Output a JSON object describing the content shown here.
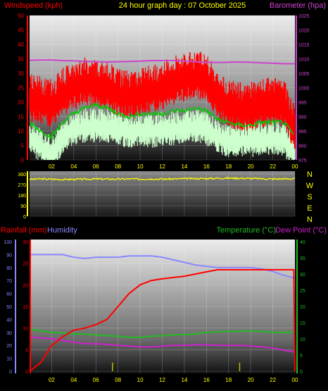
{
  "header": {
    "left": "Windspeed (kph)",
    "center": "24 hour graph day : 07 October 2025",
    "right": "Barometer (hpa)"
  },
  "bottom_header": {
    "rainfall": "Rainfall (mm)",
    "humidity": "Humidity",
    "temperature": "Temperature (°C)",
    "dewpoint": "Dew Point (°C)"
  },
  "compass": [
    "N",
    "W",
    "S",
    "E",
    "N"
  ],
  "colors": {
    "wind_max": "#ff0000",
    "wind_avg": "#00cc00",
    "wind_min": "#ccffcc",
    "barometer": "#cc44cc",
    "direction": "#ffff00",
    "rain": "#ff0000",
    "humidity": "#8888ff",
    "temperature": "#22bb22",
    "dewpoint": "#cc22cc",
    "rain_rate": "#bbbb00"
  },
  "x_ticks": [
    "02",
    "04",
    "06",
    "08",
    "10",
    "12",
    "14",
    "16",
    "18",
    "20",
    "22",
    "00"
  ],
  "chart_data": [
    {
      "type": "line",
      "title": "24 hour graph day : 07 October 2025",
      "ylabel": "Windspeed (kph)",
      "y2label": "Barometer (hpa)",
      "ylim": [
        0,
        50
      ],
      "y2lim": [
        975,
        1025
      ],
      "y_ticks": [
        0,
        5,
        10,
        15,
        20,
        25,
        30,
        35,
        40,
        45,
        50
      ],
      "y2_ticks": [
        975,
        980,
        985,
        990,
        995,
        1000,
        1005,
        1010,
        1015,
        1020,
        1025
      ],
      "x": [
        0,
        1,
        2,
        3,
        4,
        5,
        6,
        7,
        8,
        9,
        10,
        11,
        12,
        13,
        14,
        15,
        16,
        17,
        18,
        19,
        20,
        21,
        22,
        23,
        24
      ],
      "series": [
        {
          "name": "Gust",
          "axis": "left",
          "values": [
            22,
            21,
            20,
            24,
            26,
            28,
            27,
            26,
            24,
            23,
            24,
            25,
            26,
            28,
            29,
            30,
            29,
            23,
            20,
            19,
            19,
            20,
            21,
            20,
            12
          ]
        },
        {
          "name": "Average",
          "axis": "left",
          "values": [
            13,
            10,
            8,
            13,
            16,
            18,
            19,
            18,
            16,
            15,
            16,
            16,
            16,
            17,
            17,
            18,
            17,
            14,
            13,
            12,
            12,
            13,
            13,
            13,
            8
          ]
        },
        {
          "name": "Lull",
          "axis": "left",
          "values": [
            8,
            5,
            2,
            8,
            11,
            12,
            12,
            12,
            11,
            10,
            11,
            10,
            11,
            11,
            12,
            12,
            11,
            8,
            7,
            7,
            7,
            7,
            8,
            7,
            3
          ]
        },
        {
          "name": "Barometer",
          "axis": "right",
          "values": [
            1009.5,
            1009.6,
            1009.6,
            1009.4,
            1009.3,
            1009.1,
            1009.0,
            1008.9,
            1009.0,
            1009.1,
            1009.2,
            1009.4,
            1009.4,
            1009.4,
            1009.2,
            1009.0,
            1008.8,
            1008.7,
            1008.8,
            1008.9,
            1008.8,
            1008.6,
            1008.5,
            1008.3,
            1008.3
          ]
        }
      ]
    },
    {
      "type": "line",
      "ylabel": "Wind direction",
      "ylim": [
        0,
        360
      ],
      "y_ticks": [
        0,
        90,
        180,
        270,
        360
      ],
      "x": [
        0,
        1,
        2,
        3,
        4,
        5,
        6,
        7,
        8,
        9,
        10,
        11,
        12,
        13,
        14,
        15,
        16,
        17,
        18,
        19,
        20,
        21,
        22,
        23,
        24
      ],
      "series": [
        {
          "name": "Direction",
          "values": [
            315,
            318,
            316,
            314,
            315,
            316,
            318,
            317,
            316,
            318,
            317,
            318,
            317,
            318,
            320,
            321,
            322,
            324,
            325,
            324,
            322,
            320,
            318,
            319,
            320
          ]
        }
      ]
    },
    {
      "type": "line",
      "ylabel": "Rainfall (mm)",
      "y2label": "Temperature (°C)",
      "y3label": "Humidity",
      "ylim": [
        0,
        30
      ],
      "y2lim": [
        0,
        40
      ],
      "y3lim": [
        0,
        100
      ],
      "y_ticks": [
        0,
        5,
        10,
        15,
        20,
        25,
        30
      ],
      "y2_ticks": [
        0,
        5,
        10,
        15,
        20,
        25,
        30,
        35,
        40
      ],
      "y3_ticks": [
        0,
        10,
        20,
        30,
        40,
        50,
        60,
        70,
        80,
        90,
        100
      ],
      "x": [
        0,
        1,
        2,
        3,
        4,
        5,
        6,
        7,
        8,
        9,
        10,
        11,
        12,
        13,
        14,
        15,
        16,
        17,
        18,
        19,
        20,
        21,
        22,
        23,
        23.9,
        24
      ],
      "series": [
        {
          "name": "Rainfall",
          "axis": "left",
          "values": [
            0,
            2,
            6,
            8,
            9.5,
            10,
            10.8,
            12,
            15,
            18,
            20,
            21,
            21.4,
            21.7,
            22,
            22.5,
            23,
            23.5,
            23.5,
            23.5,
            23.5,
            23.5,
            23.5,
            23.5,
            23.5,
            0
          ]
        },
        {
          "name": "Humidity",
          "axis": "humidity",
          "values": [
            90,
            90,
            90,
            90,
            88,
            87,
            88,
            88,
            88,
            89,
            89,
            89,
            88,
            86,
            84,
            82,
            81,
            80,
            80,
            80,
            80,
            79,
            77,
            74,
            72,
            72
          ]
        },
        {
          "name": "Temperature",
          "axis": "right",
          "values": [
            13,
            12.5,
            12,
            11.8,
            11.5,
            11.5,
            11.2,
            11,
            10.8,
            10.5,
            10.5,
            10.8,
            11,
            11.2,
            11.3,
            11.5,
            12,
            12.2,
            12.3,
            12.3,
            12.5,
            12.3,
            12,
            12,
            12,
            12
          ]
        },
        {
          "name": "Dew Point",
          "axis": "right",
          "values": [
            10.5,
            10.3,
            10,
            9.5,
            9,
            8.5,
            8.5,
            8.3,
            8,
            7.8,
            7.5,
            7.5,
            7.8,
            8,
            8,
            8.2,
            8.2,
            8,
            8,
            8,
            7.8,
            7.5,
            7.2,
            6.5,
            6,
            6
          ]
        },
        {
          "name": "Rain rate",
          "axis": "left",
          "x": [
            7.5,
            19
          ],
          "values": [
            2,
            2
          ]
        }
      ]
    }
  ]
}
